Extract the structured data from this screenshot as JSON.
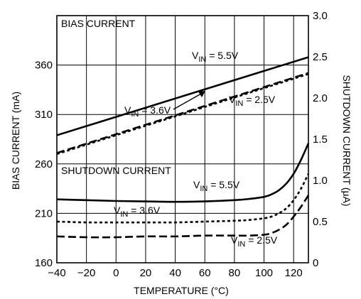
{
  "chart_data": {
    "type": "line",
    "title": "",
    "xlabel": "TEMPERATURE (°C)",
    "ylabel": "BIAS CURRENT (mA)",
    "y2label": "SHUTDOWN CURRENT (μA)",
    "xlim": [
      -40,
      130
    ],
    "ylim": [
      160,
      410
    ],
    "y2lim": [
      0,
      3.0
    ],
    "x_ticks": [
      -40,
      -20,
      0,
      20,
      40,
      60,
      80,
      100,
      120
    ],
    "y_ticks": [
      160,
      210,
      260,
      310,
      360
    ],
    "y2_ticks": [
      0,
      0.5,
      1.0,
      1.5,
      2.0,
      2.5,
      3.0
    ],
    "y2_tick_labels": [
      "0",
      "0.5",
      "1.0",
      "1.5",
      "2.0",
      "2.5",
      "3.0"
    ],
    "grid": true,
    "sections": {
      "bias": "BIAS CURRENT",
      "shutdown": "SHUTDOWN CURRENT"
    },
    "labels": {
      "bias_55": {
        "prefix": "V",
        "sub": "IN",
        "value": " = 5.5V"
      },
      "bias_36": {
        "prefix": "V",
        "sub": "IN",
        "value": " = 3.6V"
      },
      "bias_25": {
        "prefix": "V",
        "sub": "IN",
        "value": " = 2.5V"
      },
      "sd_55": {
        "prefix": "V",
        "sub": "IN",
        "value": " = 5.5V"
      },
      "sd_36": {
        "prefix": "V",
        "sub": "IN",
        "value": " = 3.6V"
      },
      "sd_25": {
        "prefix": "V",
        "sub": "IN",
        "value": " = 2.5V"
      }
    },
    "series": [
      {
        "group": "bias",
        "axis": "left",
        "style": "solid",
        "x": [
          -40,
          130
        ],
        "y": [
          289,
          368
        ]
      },
      {
        "group": "bias",
        "axis": "left",
        "style": "dashed",
        "x": [
          -40,
          130
        ],
        "y": [
          271,
          352
        ]
      },
      {
        "group": "bias",
        "axis": "left",
        "style": "dotted",
        "x": [
          -40,
          130
        ],
        "y": [
          270,
          351
        ]
      },
      {
        "group": "shutdown",
        "axis": "right",
        "style": "solid",
        "x": [
          -40,
          -20,
          0,
          20,
          40,
          60,
          80,
          90,
          100,
          105,
          110,
          115,
          120,
          125,
          130
        ],
        "y": [
          0.77,
          0.76,
          0.75,
          0.745,
          0.74,
          0.745,
          0.76,
          0.775,
          0.8,
          0.83,
          0.88,
          0.96,
          1.08,
          1.25,
          1.45
        ]
      },
      {
        "group": "shutdown",
        "axis": "right",
        "style": "dotted",
        "x": [
          -40,
          -20,
          0,
          20,
          40,
          60,
          80,
          90,
          100,
          105,
          110,
          115,
          120,
          125,
          130
        ],
        "y": [
          0.5,
          0.49,
          0.49,
          0.49,
          0.49,
          0.5,
          0.51,
          0.52,
          0.54,
          0.56,
          0.6,
          0.66,
          0.76,
          0.9,
          1.08
        ]
      },
      {
        "group": "shutdown",
        "axis": "right",
        "style": "dashed",
        "x": [
          -40,
          -20,
          0,
          20,
          40,
          60,
          80,
          90,
          100,
          105,
          110,
          115,
          120,
          125,
          130
        ],
        "y": [
          0.32,
          0.31,
          0.31,
          0.32,
          0.32,
          0.33,
          0.33,
          0.33,
          0.34,
          0.36,
          0.4,
          0.46,
          0.56,
          0.68,
          0.82
        ]
      }
    ]
  }
}
